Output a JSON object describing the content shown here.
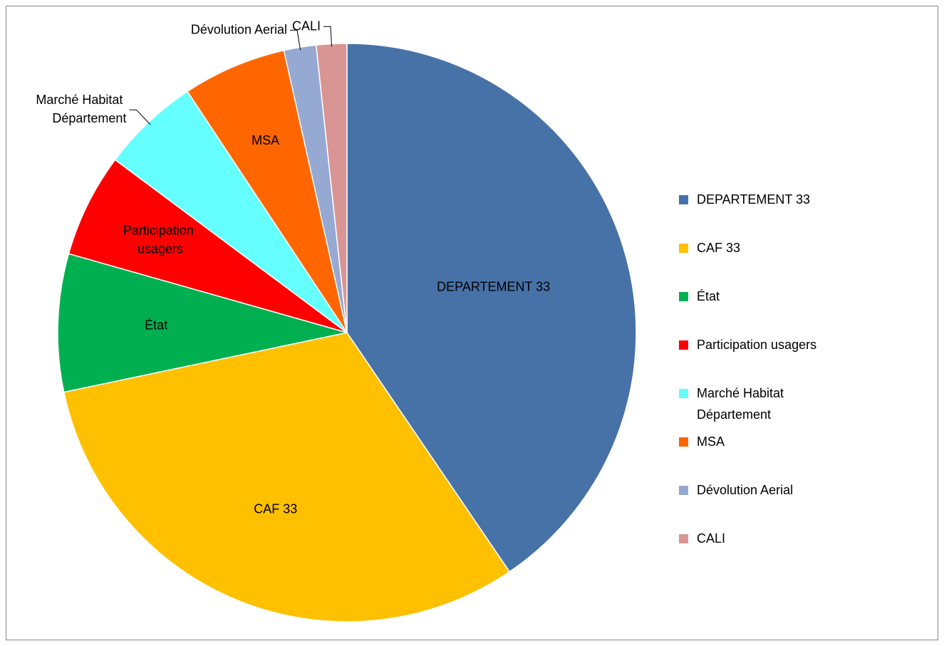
{
  "chart_data": {
    "type": "pie",
    "categories": [
      "DEPARTEMENT 33",
      "CAF 33",
      "État",
      "Participation usagers",
      "Marché Habitat Département",
      "MSA",
      "Dévolution Aerial",
      "CALI"
    ],
    "values": [
      40.5,
      31.2,
      7.7,
      5.8,
      5.5,
      5.8,
      1.8,
      1.7
    ],
    "colors": [
      "#4672a8",
      "#ffc000",
      "#00b050",
      "#ff0000",
      "#66ffff",
      "#ff6600",
      "#95a9d3",
      "#d99594"
    ],
    "legend": "right"
  }
}
